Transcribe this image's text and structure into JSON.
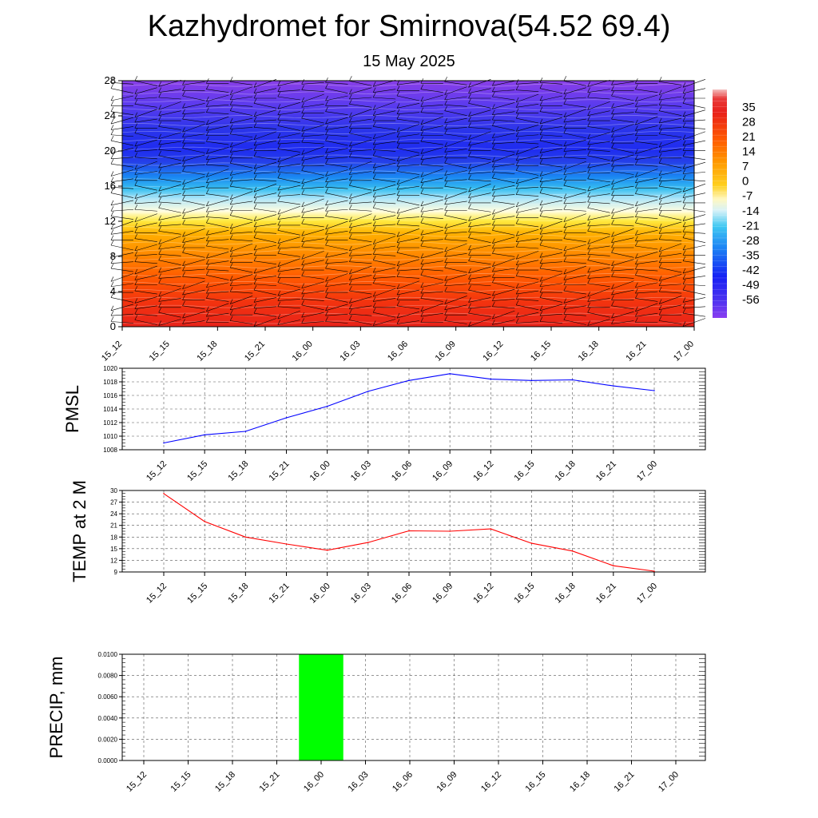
{
  "title": "Kazhydromet for Smirnova(54.52 69.4)",
  "subtitle": "15 May 2025",
  "chart_data": [
    {
      "type": "heatmap",
      "name": "temperature-cross-section",
      "x": [
        "15_12",
        "15_15",
        "15_18",
        "15_21",
        "16_00",
        "16_03",
        "16_06",
        "16_09",
        "16_12",
        "16_15",
        "16_18",
        "16_21",
        "17_00"
      ],
      "yticks": [
        0,
        4,
        8,
        12,
        16,
        20,
        24,
        28
      ],
      "ylim": [
        0,
        28
      ],
      "levels": [
        0,
        2,
        4,
        6,
        8,
        10,
        12,
        14,
        16,
        18,
        20,
        22,
        24,
        26,
        28
      ],
      "values_by_level": [
        28,
        24,
        20,
        16,
        12,
        7,
        0,
        -14,
        -28,
        -42,
        -56,
        -56,
        -49,
        -42,
        -35
      ],
      "colorbar": {
        "labels": [
          "35",
          "28",
          "21",
          "14",
          "7",
          "0",
          "-7",
          "-14",
          "-21",
          "-28",
          "-35",
          "-42",
          "-49",
          "-56"
        ],
        "range": [
          -63,
          35
        ]
      },
      "wind_barbs": true
    },
    {
      "type": "line",
      "name": "pmsl",
      "ylabel": "PMSL",
      "x": [
        "15_12",
        "15_15",
        "15_18",
        "15_21",
        "16_00",
        "16_03",
        "16_06",
        "16_09",
        "16_12",
        "16_15",
        "16_18",
        "16_21",
        "17_00"
      ],
      "values": [
        1009.0,
        1010.2,
        1010.7,
        1012.7,
        1014.4,
        1016.6,
        1018.2,
        1019.2,
        1018.4,
        1018.2,
        1018.3,
        1017.4,
        1016.7
      ],
      "ylim": [
        1008,
        1020
      ],
      "yticks": [
        "1008",
        "1010",
        "1012",
        "1014",
        "1016",
        "1018",
        "1020"
      ],
      "color": "#0000ff",
      "grid": true
    },
    {
      "type": "line",
      "name": "temp-2m",
      "ylabel": "TEMP at 2 M",
      "x": [
        "15_12",
        "15_15",
        "15_18",
        "15_21",
        "16_00",
        "16_03",
        "16_06",
        "16_09",
        "16_12",
        "16_15",
        "16_18",
        "16_21",
        "17_00"
      ],
      "values": [
        29.2,
        22.0,
        18.0,
        16.2,
        14.6,
        16.6,
        19.6,
        19.5,
        20.1,
        16.4,
        14.4,
        10.6,
        9.2
      ],
      "ylim": [
        9,
        30
      ],
      "yticks": [
        "9",
        "12",
        "15",
        "18",
        "21",
        "24",
        "27",
        "30"
      ],
      "color": "#ff0000",
      "grid": true
    },
    {
      "type": "bar",
      "name": "precip",
      "ylabel": "PRECIP, mm",
      "categories": [
        "15_12",
        "15_15",
        "15_18",
        "15_21",
        "16_00",
        "16_03",
        "16_06",
        "16_09",
        "16_12",
        "16_15",
        "16_18",
        "16_21",
        "17_00"
      ],
      "values": [
        0,
        0,
        0,
        0,
        0.01,
        0,
        0,
        0,
        0,
        0,
        0,
        0,
        0
      ],
      "ylim": [
        0,
        0.01
      ],
      "yticks": [
        "0.0000",
        "0.0020",
        "0.0040",
        "0.0060",
        "0.0080",
        "0.0100"
      ],
      "color": "#00ff00",
      "grid": true
    }
  ]
}
